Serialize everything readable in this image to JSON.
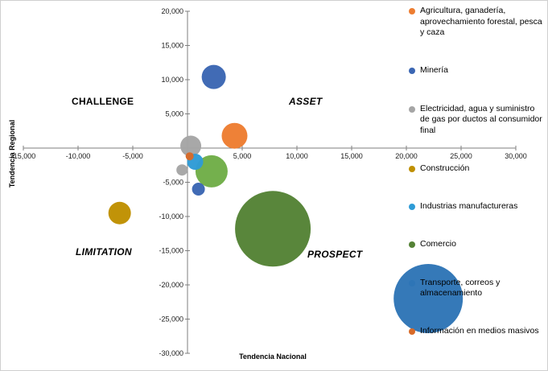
{
  "figure": {
    "background": "#ffffff",
    "border_color": "#cfcfcf"
  },
  "axes": {
    "x_title": "Tendencia Nacional",
    "y_title": "Tendencia Regional",
    "x_ticks": [
      {
        "v": -15000,
        "label": "-15,000"
      },
      {
        "v": -10000,
        "label": "-10,000"
      },
      {
        "v": -5000,
        "label": "-5,000"
      },
      {
        "v": 0,
        "label": "0"
      },
      {
        "v": 5000,
        "label": "5,000"
      },
      {
        "v": 10000,
        "label": "10,000"
      },
      {
        "v": 15000,
        "label": "15,000"
      },
      {
        "v": 20000,
        "label": "20,000"
      },
      {
        "v": 25000,
        "label": "25,000"
      },
      {
        "v": 30000,
        "label": "30,000"
      }
    ],
    "y_ticks": [
      {
        "v": 20000,
        "label": "20,000"
      },
      {
        "v": 15000,
        "label": "15,000"
      },
      {
        "v": 10000,
        "label": "10,000"
      },
      {
        "v": 5000,
        "label": "5,000"
      },
      {
        "v": -5000,
        "label": "-5,000"
      },
      {
        "v": -10000,
        "label": "-10,000"
      },
      {
        "v": -15000,
        "label": "-15,000"
      },
      {
        "v": -20000,
        "label": "-20,000"
      },
      {
        "v": -25000,
        "label": "-25,000"
      },
      {
        "v": -30000,
        "label": "-30,000"
      }
    ]
  },
  "quadrants": {
    "top_left": "CHALLENGE",
    "top_right": "ASSET",
    "bottom_left": "LIMITATION",
    "bottom_right": "PROSPECT"
  },
  "chart_data": {
    "type": "scatter",
    "subtype": "bubble",
    "xlabel": "Tendencia Nacional",
    "ylabel": "Tendencia Regional",
    "xlim": [
      -15000,
      30000
    ],
    "ylim": [
      -30000,
      20000
    ],
    "grid": false,
    "legend_position": "right",
    "series": [
      {
        "name": "Agricultura, ganadería, aprovechamiento forestal, pesca y caza",
        "color": "#ED7D31",
        "points": [
          {
            "x": 4300,
            "y": 1800,
            "r": 16
          }
        ]
      },
      {
        "name": "Minería",
        "color": "#3B66B3",
        "points": [
          {
            "x": 2400,
            "y": 10400,
            "r": 15
          },
          {
            "x": 1000,
            "y": -6000,
            "r": 8
          }
        ]
      },
      {
        "name": "Electricidad, agua y suministro de gas por ductos al consumidor final",
        "color": "#A5A5A5",
        "points": [
          {
            "x": 300,
            "y": 300,
            "r": 13
          },
          {
            "x": -500,
            "y": -3200,
            "r": 7
          }
        ]
      },
      {
        "name": "Construcción",
        "color": "#BF8F00",
        "points": [
          {
            "x": -6200,
            "y": -9500,
            "r": 14
          }
        ]
      },
      {
        "name": "Industrias manufactureras",
        "color": "#2E9BD6",
        "points": [
          {
            "x": 700,
            "y": -2000,
            "r": 10
          }
        ]
      },
      {
        "name": "Comercio",
        "color": "#548235",
        "points": [
          {
            "x": 7800,
            "y": -11800,
            "r": 47
          },
          {
            "x": 2200,
            "y": -3400,
            "r": 20,
            "color": "#70AD47"
          }
        ]
      },
      {
        "name": "Transporte, correos y almacenamiento",
        "color": "#2E75B6",
        "points": [
          {
            "x": 22000,
            "y": -22000,
            "r": 43
          }
        ]
      },
      {
        "name": "Información en medios masivos",
        "color": "#D86A28",
        "points": [
          {
            "x": 200,
            "y": -1200,
            "r": 5
          }
        ]
      }
    ]
  }
}
